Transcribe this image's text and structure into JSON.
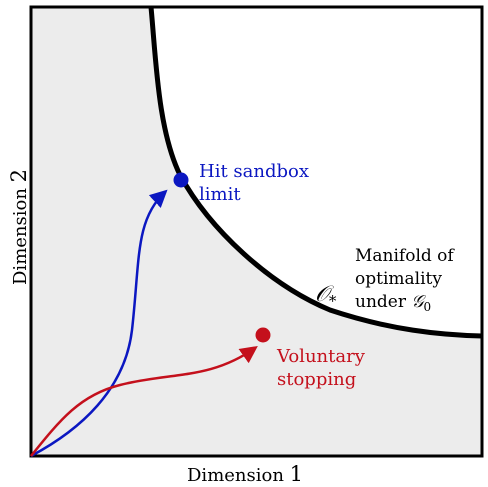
{
  "axes": {
    "x_label_text": "Dimension ",
    "x_label_num": "1",
    "y_label_text": "Dimension ",
    "y_label_num": "2"
  },
  "annotations": {
    "hit_line1": "Hit sandbox",
    "hit_line2": "limit",
    "vol_line1": "Voluntary",
    "vol_line2": "stopping",
    "manifold_line1": "Manifold of",
    "manifold_line2": "optimality",
    "manifold_line3": "under ",
    "manifold_symbol": "𝒪",
    "manifold_subscript": "*",
    "manifold_group": "𝒢",
    "manifold_group_sub": "0"
  },
  "colors": {
    "region_fill": "#ececec",
    "frame": "#000000",
    "manifold": "#000000",
    "blue": "#0b17c1",
    "red": "#c4101c"
  }
}
